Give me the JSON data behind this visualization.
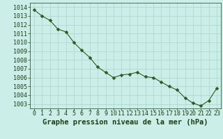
{
  "x": [
    0,
    1,
    2,
    3,
    4,
    5,
    6,
    7,
    8,
    9,
    10,
    11,
    12,
    13,
    14,
    15,
    16,
    17,
    18,
    19,
    20,
    21,
    22,
    23
  ],
  "y": [
    1013.7,
    1013.0,
    1012.5,
    1011.5,
    1011.2,
    1010.0,
    1009.1,
    1008.3,
    1007.2,
    1006.6,
    1006.0,
    1006.3,
    1006.4,
    1006.6,
    1006.1,
    1006.0,
    1005.5,
    1005.0,
    1004.6,
    1003.7,
    1003.1,
    1002.8,
    1003.4,
    1004.8
  ],
  "ylim": [
    1002.5,
    1014.5
  ],
  "yticks": [
    1003,
    1004,
    1005,
    1006,
    1007,
    1008,
    1009,
    1010,
    1011,
    1012,
    1013,
    1014
  ],
  "xticks": [
    0,
    1,
    2,
    3,
    4,
    5,
    6,
    7,
    8,
    9,
    10,
    11,
    12,
    13,
    14,
    15,
    16,
    17,
    18,
    19,
    20,
    21,
    22,
    23
  ],
  "line_color": "#2d5a1b",
  "marker": "D",
  "marker_size": 2.5,
  "bg_plot": "#cceee8",
  "bg_fig": "#cceee8",
  "grid_color": "#aad4ce",
  "xlabel": "Graphe pression niveau de la mer (hPa)",
  "xlabel_color": "#1a4010",
  "xlabel_fontsize": 7.5,
  "tick_fontsize": 6.0,
  "tick_color": "#1a4010"
}
